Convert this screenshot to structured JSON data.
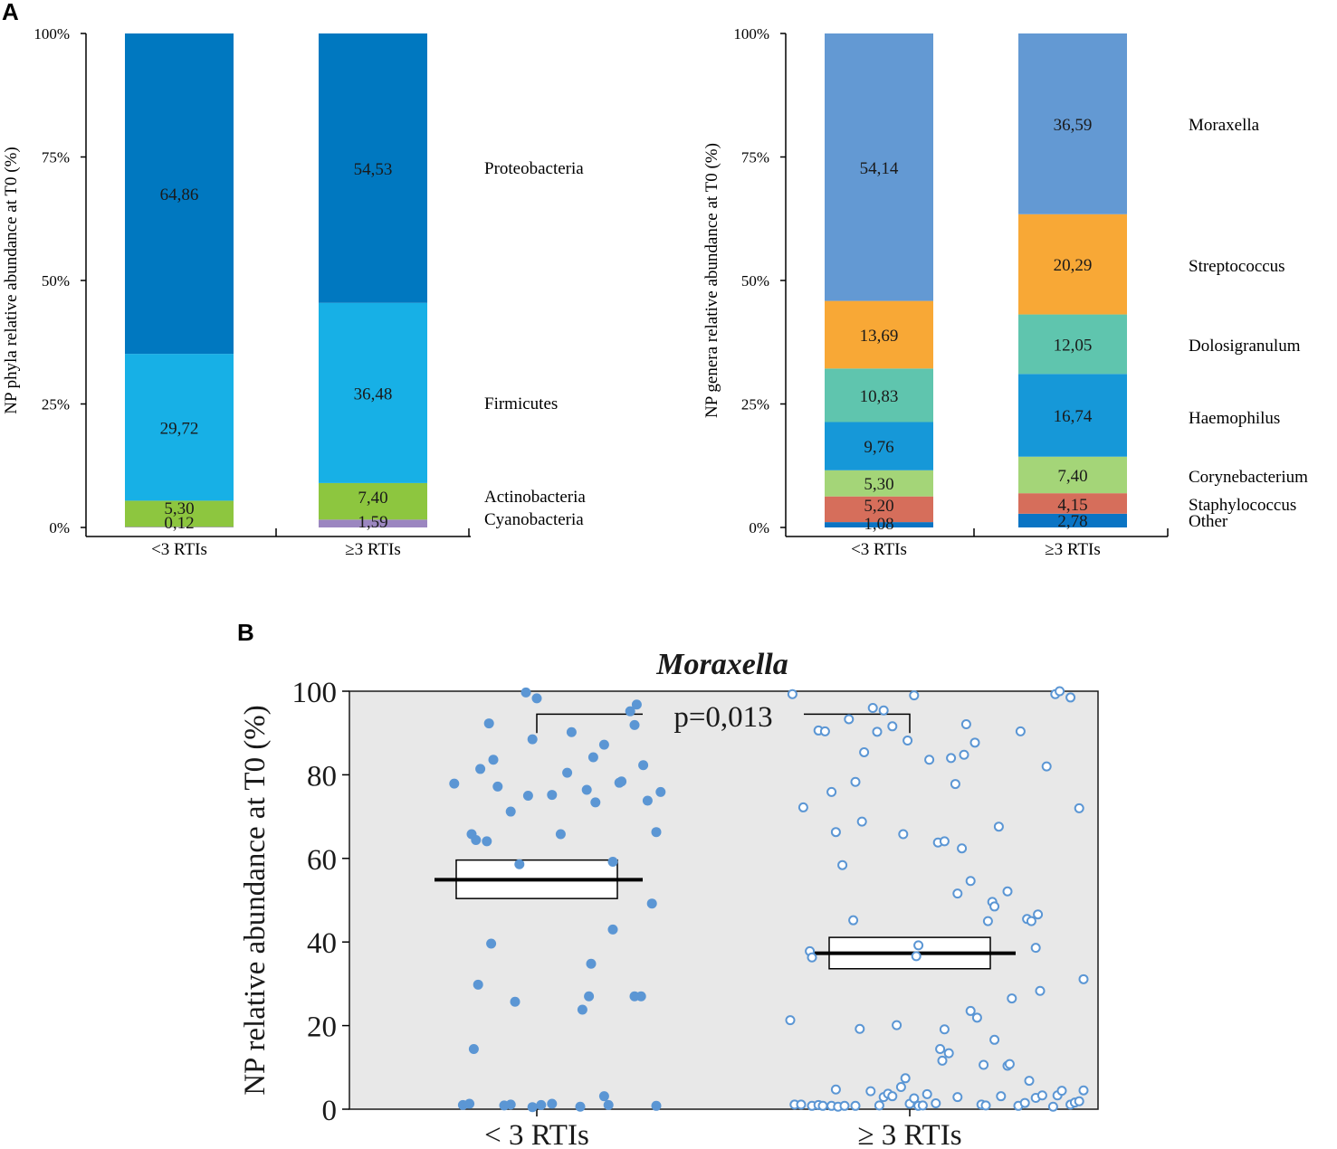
{
  "panel_labels": {
    "a": "A",
    "b": "B"
  },
  "chart_data": [
    {
      "id": "phyla",
      "type": "bar",
      "stacked": true,
      "ylabel": "NP phyla relative abundance at T0 (%)",
      "yticks": [
        "0%",
        "25%",
        "50%",
        "75%",
        "100%"
      ],
      "ylim": [
        0,
        100
      ],
      "categories": [
        "<3 RTIs",
        "≥3 RTIs"
      ],
      "series": [
        {
          "name": "Cyanobacteria",
          "color": "#9b86c0",
          "values": [
            0.12,
            1.59
          ],
          "labels": [
            "0,12",
            "1,59"
          ]
        },
        {
          "name": "Actinobacteria",
          "color": "#8dc63f",
          "values": [
            5.3,
            7.4
          ],
          "labels": [
            "5,30",
            "7,40"
          ]
        },
        {
          "name": "Firmicutes",
          "color": "#17b0e6",
          "values": [
            29.72,
            36.48
          ],
          "labels": [
            "29,72",
            "36,48"
          ]
        },
        {
          "name": "Proteobacteria",
          "color": "#0078c0",
          "values": [
            64.86,
            54.53
          ],
          "labels": [
            "64,86",
            "54,53"
          ]
        }
      ]
    },
    {
      "id": "genera",
      "type": "bar",
      "stacked": true,
      "ylabel": "NP genera relative abundance at T0 (%)",
      "yticks": [
        "0%",
        "25%",
        "50%",
        "75%",
        "100%"
      ],
      "ylim": [
        0,
        100
      ],
      "categories": [
        "<3 RTIs",
        "≥3 RTIs"
      ],
      "series": [
        {
          "name": "Other",
          "color": "#0a74c4",
          "values": [
            1.08,
            2.78
          ],
          "labels": [
            "1,08",
            "2,78"
          ]
        },
        {
          "name": "Staphylococcus",
          "color": "#d66e5b",
          "values": [
            5.2,
            4.15
          ],
          "labels": [
            "5,20",
            "4,15"
          ]
        },
        {
          "name": "Corynebacterium",
          "color": "#a4d578",
          "values": [
            5.3,
            7.4
          ],
          "labels": [
            "5,30",
            "7,40"
          ]
        },
        {
          "name": "Haemophilus",
          "color": "#1698d8",
          "values": [
            9.76,
            16.74
          ],
          "labels": [
            "9,76",
            "16,74"
          ]
        },
        {
          "name": "Dolosigranulum",
          "color": "#5fc5ae",
          "values": [
            10.83,
            12.05
          ],
          "labels": [
            "10,83",
            "12,05"
          ]
        },
        {
          "name": "Streptococcus",
          "color": "#f8a836",
          "values": [
            13.69,
            20.29
          ],
          "labels": [
            "13,69",
            "20,29"
          ]
        },
        {
          "name": "Moraxella",
          "color": "#6399d3",
          "values": [
            54.14,
            36.59
          ],
          "labels": [
            "54,14",
            "36,59"
          ]
        }
      ]
    },
    {
      "id": "moraxella",
      "type": "scatter",
      "title": "Moraxella",
      "ylabel": "NP relative abundance at T0 (%)",
      "ylim": [
        0,
        100
      ],
      "yticks": [
        "0",
        "20",
        "40",
        "60",
        "80",
        "100"
      ],
      "categories": [
        "< 3 RTIs",
        "≥ 3 RTIs"
      ],
      "annotation": "p=0,013",
      "groups": [
        {
          "name": "< 3 RTIs",
          "marker": "filled",
          "color": "#5b96d4",
          "mean": 54.9,
          "ci": [
            50.4,
            59.6
          ],
          "points": [
            [
              -0.34,
              1
            ],
            [
              -0.31,
              1.3
            ],
            [
              -0.29,
              14.4
            ],
            [
              -0.27,
              29.8
            ],
            [
              -0.15,
              0.9
            ],
            [
              -0.12,
              1.1
            ],
            [
              -0.21,
              39.6
            ],
            [
              -0.1,
              25.7
            ],
            [
              -0.02,
              0.5
            ],
            [
              0.02,
              1
            ],
            [
              0.07,
              1.3
            ],
            [
              0.2,
              0.6
            ],
            [
              0.21,
              23.8
            ],
            [
              0.24,
              27
            ],
            [
              0.25,
              34.8
            ],
            [
              0.33,
              1
            ],
            [
              0.31,
              3.1
            ],
            [
              0.35,
              43
            ],
            [
              0.45,
              27
            ],
            [
              0.48,
              27
            ],
            [
              0.53,
              49.2
            ],
            [
              0.55,
              0.8
            ],
            [
              -0.38,
              77.9
            ],
            [
              -0.3,
              65.8
            ],
            [
              -0.28,
              64.4
            ],
            [
              -0.23,
              64.1
            ],
            [
              -0.26,
              81.4
            ],
            [
              -0.2,
              83.6
            ],
            [
              -0.22,
              92.3
            ],
            [
              -0.18,
              77.2
            ],
            [
              -0.12,
              71.2
            ],
            [
              -0.08,
              58.6
            ],
            [
              -0.05,
              99.7
            ],
            [
              0.0,
              98.3
            ],
            [
              -0.02,
              88.5
            ],
            [
              -0.04,
              75
            ],
            [
              0.07,
              75.2
            ],
            [
              0.11,
              65.8
            ],
            [
              0.14,
              80.5
            ],
            [
              0.16,
              90.2
            ],
            [
              0.23,
              76.4
            ],
            [
              0.26,
              84.2
            ],
            [
              0.27,
              73.4
            ],
            [
              0.31,
              87.2
            ],
            [
              0.35,
              59.2
            ],
            [
              0.38,
              78.1
            ],
            [
              0.39,
              78.4
            ],
            [
              0.43,
              95.2
            ],
            [
              0.45,
              91.9
            ],
            [
              0.46,
              96.8
            ],
            [
              0.49,
              82.3
            ],
            [
              0.51,
              73.8
            ],
            [
              0.55,
              66.3
            ],
            [
              0.57,
              75.9
            ]
          ]
        },
        {
          "name": "≥ 3 RTIs",
          "marker": "open",
          "color": "#5b96d4",
          "mean": 37.3,
          "ci": [
            33.6,
            41.1
          ],
          "points": [
            [
              -0.55,
              21.3
            ],
            [
              -0.53,
              1.1
            ],
            [
              -0.5,
              1.1
            ],
            [
              -0.45,
              0.8
            ],
            [
              -0.42,
              1
            ],
            [
              -0.4,
              0.8
            ],
            [
              -0.36,
              0.8
            ],
            [
              -0.34,
              4.7
            ],
            [
              -0.33,
              0.6
            ],
            [
              -0.3,
              0.8
            ],
            [
              -0.25,
              0.8
            ],
            [
              -0.23,
              19.2
            ],
            [
              -0.18,
              4.3
            ],
            [
              -0.14,
              0.9
            ],
            [
              -0.12,
              2.9
            ],
            [
              -0.1,
              3.7
            ],
            [
              -0.08,
              3.1
            ],
            [
              -0.06,
              20.1
            ],
            [
              -0.04,
              5.3
            ],
            [
              -0.02,
              7.4
            ],
            [
              0.0,
              1.3
            ],
            [
              0.02,
              2.6
            ],
            [
              0.04,
              0.8
            ],
            [
              0.06,
              0.9
            ],
            [
              0.08,
              3.6
            ],
            [
              0.12,
              1.4
            ],
            [
              0.16,
              19.1
            ],
            [
              0.18,
              13.4
            ],
            [
              0.14,
              14.4
            ],
            [
              0.15,
              11.6
            ],
            [
              0.22,
              2.9
            ],
            [
              0.33,
              1.1
            ],
            [
              0.35,
              0.9
            ],
            [
              0.28,
              23.5
            ],
            [
              0.31,
              21.9
            ],
            [
              0.34,
              10.6
            ],
            [
              0.42,
              3.1
            ],
            [
              0.39,
              16.6
            ],
            [
              0.45,
              10.4
            ],
            [
              0.46,
              10.8
            ],
            [
              0.47,
              26.5
            ],
            [
              0.5,
              0.8
            ],
            [
              0.53,
              1.5
            ],
            [
              0.55,
              6.8
            ],
            [
              0.58,
              2.7
            ],
            [
              0.61,
              3.3
            ],
            [
              0.6,
              28.3
            ],
            [
              0.66,
              0.6
            ],
            [
              0.68,
              3.3
            ],
            [
              0.7,
              4.4
            ],
            [
              0.74,
              1.1
            ],
            [
              0.76,
              1.6
            ],
            [
              0.78,
              1.9
            ],
            [
              0.8,
              4.5
            ],
            [
              -0.54,
              99.3
            ],
            [
              -0.49,
              72.2
            ],
            [
              -0.46,
              37.8
            ],
            [
              -0.45,
              36.3
            ],
            [
              -0.42,
              90.6
            ],
            [
              -0.39,
              90.4
            ],
            [
              -0.36,
              75.9
            ],
            [
              -0.34,
              66.3
            ],
            [
              -0.31,
              58.4
            ],
            [
              -0.28,
              93.3
            ],
            [
              -0.26,
              45.2
            ],
            [
              -0.25,
              78.3
            ],
            [
              -0.22,
              68.8
            ],
            [
              -0.21,
              85.4
            ],
            [
              -0.17,
              96
            ],
            [
              -0.15,
              90.3
            ],
            [
              -0.12,
              95.4
            ],
            [
              -0.08,
              91.6
            ],
            [
              -0.03,
              65.8
            ],
            [
              -0.01,
              88.2
            ],
            [
              0.02,
              99
            ],
            [
              0.04,
              39.2
            ],
            [
              0.03,
              36.6
            ],
            [
              0.09,
              83.6
            ],
            [
              0.13,
              63.8
            ],
            [
              0.16,
              64.1
            ],
            [
              0.19,
              84
            ],
            [
              0.21,
              77.8
            ],
            [
              0.22,
              51.6
            ],
            [
              0.24,
              62.4
            ],
            [
              0.25,
              84.8
            ],
            [
              0.26,
              92.1
            ],
            [
              0.28,
              54.6
            ],
            [
              0.3,
              87.7
            ],
            [
              0.38,
              49.6
            ],
            [
              0.39,
              48.5
            ],
            [
              0.36,
              45
            ],
            [
              0.41,
              67.6
            ],
            [
              0.45,
              52.1
            ],
            [
              0.51,
              90.4
            ],
            [
              0.54,
              45.5
            ],
            [
              0.56,
              45
            ],
            [
              0.58,
              38.6
            ],
            [
              0.59,
              46.6
            ],
            [
              0.63,
              82
            ],
            [
              0.67,
              99.3
            ],
            [
              0.69,
              100
            ],
            [
              0.74,
              98.5
            ],
            [
              0.78,
              72
            ],
            [
              0.8,
              31.1
            ]
          ]
        }
      ]
    }
  ]
}
